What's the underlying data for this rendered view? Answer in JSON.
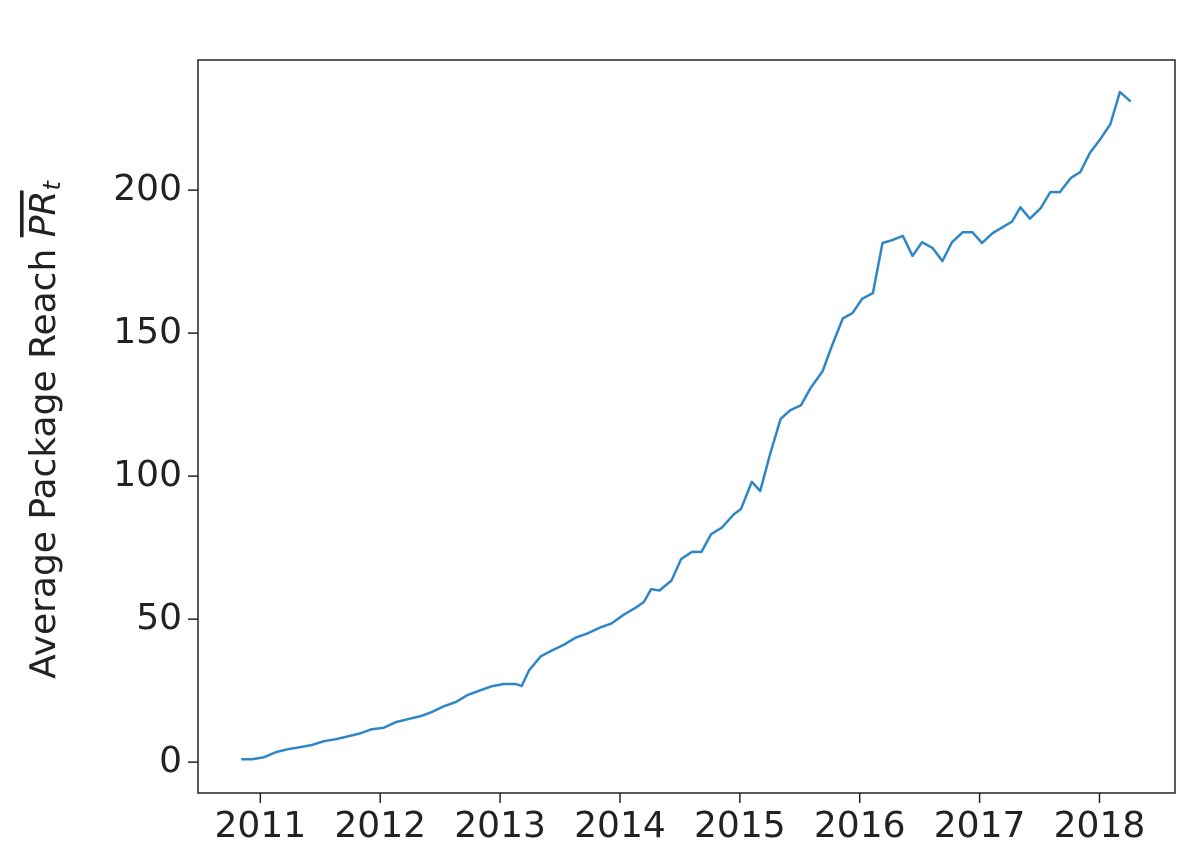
{
  "chart_data": {
    "type": "line",
    "ylabel": "Average Package Reach ",
    "ylabel_symbol": "PR",
    "ylabel_subscript": "t",
    "color": "#2f86c6",
    "x": [
      2010.84,
      2010.93,
      2011.03,
      2011.13,
      2011.23,
      2011.33,
      2011.43,
      2011.53,
      2011.63,
      2011.73,
      2011.83,
      2011.93,
      2012.03,
      2012.13,
      2012.23,
      2012.33,
      2012.43,
      2012.53,
      2012.63,
      2012.73,
      2012.83,
      2012.93,
      2013.03,
      2013.13,
      2013.18,
      2013.24,
      2013.34,
      2013.43,
      2013.53,
      2013.63,
      2013.73,
      2013.83,
      2013.93,
      2014.03,
      2014.13,
      2014.2,
      2014.26,
      2014.33,
      2014.43,
      2014.51,
      2014.6,
      2014.68,
      2014.76,
      2014.85,
      2014.95,
      2015.01,
      2015.1,
      2015.17,
      2015.25,
      2015.34,
      2015.42,
      2015.51,
      2015.59,
      2015.69,
      2015.77,
      2015.86,
      2015.94,
      2016.02,
      2016.11,
      2016.19,
      2016.27,
      2016.36,
      2016.44,
      2016.52,
      2016.61,
      2016.69,
      2016.77,
      2016.86,
      2016.94,
      2017.02,
      2017.11,
      2017.19,
      2017.27,
      2017.34,
      2017.42,
      2017.51,
      2017.59,
      2017.67,
      2017.76,
      2017.84,
      2017.92,
      2018.01,
      2018.09,
      2018.17,
      2018.26
    ],
    "values": [
      1,
      1,
      1.7,
      3.5,
      4.5,
      5.2,
      6,
      7.3,
      8,
      9,
      10,
      11.5,
      12,
      14,
      15,
      16,
      17.5,
      19.5,
      21,
      23.5,
      25,
      26.5,
      27.3,
      27.3,
      26.6,
      32,
      37,
      39,
      41,
      43.5,
      45,
      47,
      48.5,
      51.5,
      54,
      56,
      60.5,
      60,
      63.5,
      71,
      73.5,
      73.5,
      79.7,
      82,
      86.7,
      88.5,
      98,
      94.8,
      107.3,
      120,
      123,
      124.8,
      130.8,
      136.7,
      145.8,
      155.2,
      157,
      162,
      164,
      181.5,
      182.5,
      184,
      177,
      181.8,
      179.7,
      175.2,
      181.8,
      185.3,
      185.3,
      181.5,
      185,
      187,
      189,
      194,
      190,
      193.7,
      199.3,
      199.3,
      204.2,
      206.3,
      213,
      218,
      223,
      234.3,
      231
    ],
    "xlim": [
      2010.48,
      2018.63
    ],
    "ylim": [
      -10.8,
      245.5
    ],
    "xticks": [
      2011,
      2012,
      2013,
      2014,
      2015,
      2016,
      2017,
      2018
    ],
    "yticks": [
      0,
      50,
      100,
      150,
      200
    ]
  }
}
